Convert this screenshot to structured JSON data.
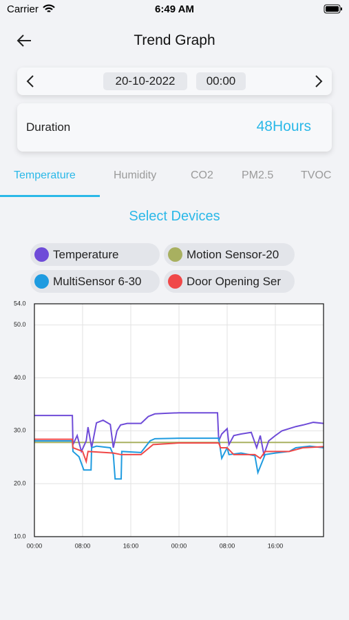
{
  "status_bar": {
    "carrier": "Carrier",
    "time": "6:49 AM"
  },
  "header": {
    "title": "Trend Graph"
  },
  "date_picker": {
    "date": "20-10-2022",
    "time": "00:00"
  },
  "duration": {
    "label": "Duration",
    "value": "48Hours"
  },
  "tabs": [
    "Temperature",
    "Humidity",
    "CO2",
    "PM2.5",
    "TVOC"
  ],
  "select_devices": "Select Devices",
  "chart_data": {
    "type": "line",
    "xlim": [
      0,
      48
    ],
    "xticks": [
      {
        "value": 0,
        "label": "00:00"
      },
      {
        "value": 8,
        "label": "08:00"
      },
      {
        "value": 16,
        "label": "16:00"
      },
      {
        "value": 24,
        "label": "00:00"
      },
      {
        "value": 32,
        "label": "08:00"
      },
      {
        "value": 40,
        "label": "16:00"
      }
    ],
    "ylim": [
      10,
      54
    ],
    "yticks": [
      {
        "value": 10,
        "label": "10.0"
      },
      {
        "value": 20,
        "label": "20.0"
      },
      {
        "value": 30,
        "label": "30.0"
      },
      {
        "value": 40,
        "label": "40.0"
      },
      {
        "value": 50,
        "label": "50.0"
      },
      {
        "value": 54,
        "label": "54.0"
      }
    ],
    "grid": true,
    "series": [
      {
        "name": "Temperature",
        "color": "#6e4bd8",
        "x": [
          0,
          6.3,
          6.4,
          7.1,
          7.8,
          8.6,
          8.9,
          9.5,
          10.3,
          11.4,
          12.6,
          13.1,
          13.7,
          14.3,
          15.4,
          17.7,
          18.9,
          20.0,
          21.7,
          24.0,
          30.4,
          30.6,
          31.1,
          32.0,
          32.3,
          33.1,
          34.3,
          36.0,
          36.9,
          37.5,
          38.1,
          38.9,
          40.0,
          41.1,
          43.4,
          44.6,
          46.3,
          48.0
        ],
        "values": [
          32.9,
          32.9,
          27.4,
          29.1,
          26.1,
          28.1,
          30.7,
          26.8,
          31.5,
          32.0,
          31.2,
          26.8,
          30.0,
          31.1,
          31.4,
          31.4,
          32.7,
          33.2,
          33.3,
          33.4,
          33.4,
          28.1,
          29.4,
          30.4,
          27.4,
          29.1,
          29.4,
          29.7,
          26.8,
          29.1,
          25.5,
          28.1,
          29.1,
          30.0,
          30.8,
          31.1,
          31.6,
          31.4
        ]
      },
      {
        "name": "Motion Sensor-20",
        "color": "#a8b060",
        "x": [
          0,
          48
        ],
        "values": [
          27.8,
          27.8
        ]
      },
      {
        "name": "MultiSensor 6-30",
        "color": "#1e9be0",
        "x": [
          0,
          6.3,
          6.4,
          7.4,
          8.2,
          9.4,
          9.5,
          10.3,
          12.6,
          13.1,
          13.4,
          14.4,
          14.5,
          17.7,
          19.2,
          20.0,
          24.0,
          30.6,
          31.1,
          32.0,
          32.3,
          34.3,
          36.6,
          37.1,
          38.3,
          40.0,
          42.3,
          43.4,
          45.7,
          48.0
        ],
        "values": [
          28.1,
          28.1,
          26.1,
          25.1,
          22.6,
          22.6,
          26.8,
          27.1,
          26.8,
          25.5,
          20.9,
          20.9,
          26.1,
          25.9,
          28.1,
          28.5,
          28.6,
          28.6,
          24.8,
          26.8,
          25.5,
          25.8,
          25.3,
          22.1,
          25.5,
          25.8,
          26.1,
          26.8,
          27.1,
          26.8
        ]
      },
      {
        "name": "Door Opening Ser",
        "color": "#f04848",
        "x": [
          0,
          6.3,
          6.4,
          8.0,
          8.6,
          8.9,
          13.1,
          14.4,
          17.7,
          19.7,
          24.0,
          30.6,
          30.9,
          32.0,
          33.1,
          36.6,
          37.5,
          38.3,
          42.3,
          44.6,
          48.0
        ],
        "values": [
          28.4,
          28.4,
          26.8,
          26.1,
          24.2,
          26.1,
          25.8,
          25.5,
          25.5,
          27.4,
          27.7,
          27.7,
          26.8,
          26.8,
          25.5,
          25.5,
          24.8,
          26.1,
          26.1,
          26.8,
          27.0
        ]
      }
    ]
  }
}
